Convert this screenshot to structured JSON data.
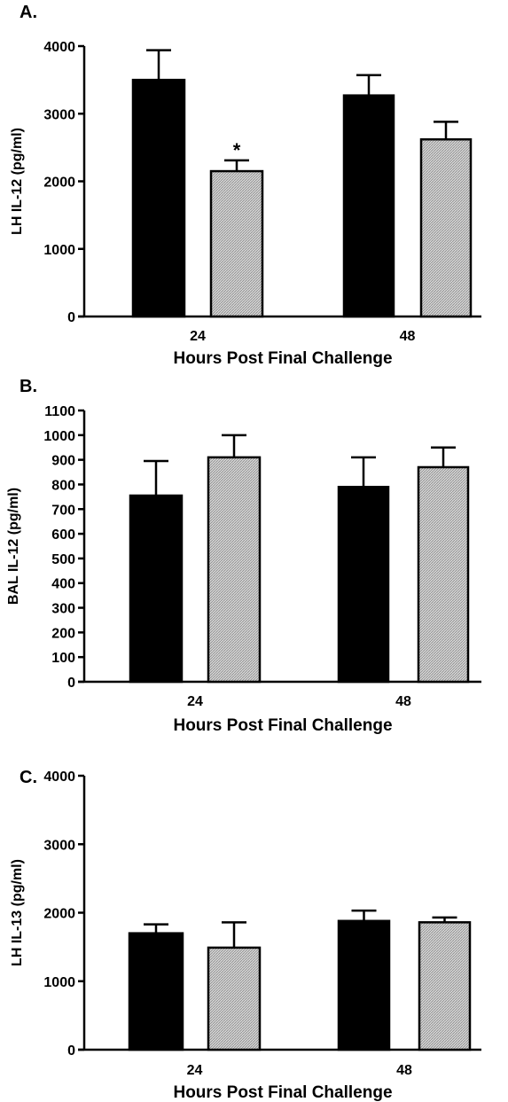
{
  "chart_data": [
    {
      "type": "bar",
      "panel": "A.",
      "ylabel": "LH IL-12 (pg/ml)",
      "xlabel": "Hours Post Final Challenge",
      "categories": [
        "24",
        "48"
      ],
      "ylim": [
        0,
        4000
      ],
      "yticks": [
        "0",
        "1000",
        "2000",
        "3000",
        "4000"
      ],
      "series": [
        {
          "fill": "#000000",
          "values": [
            3500,
            3270
          ],
          "errors": [
            440,
            300
          ]
        },
        {
          "fill": "hatch-gray",
          "values": [
            2150,
            2620
          ],
          "errors": [
            160,
            260
          ]
        }
      ],
      "annotations": [
        {
          "text": "*",
          "category": "24",
          "series": 1
        }
      ]
    },
    {
      "type": "bar",
      "panel": "B.",
      "ylabel": "BAL IL-12 (pg/ml)",
      "xlabel": "Hours Post Final Challenge",
      "categories": [
        "24",
        "48"
      ],
      "ylim": [
        0,
        1100
      ],
      "yticks": [
        "0",
        "100",
        "200",
        "300",
        "400",
        "500",
        "600",
        "700",
        "800",
        "900",
        "1000",
        "1100"
      ],
      "series": [
        {
          "fill": "#000000",
          "values": [
            755,
            790
          ],
          "errors": [
            140,
            120
          ]
        },
        {
          "fill": "hatch-gray",
          "values": [
            910,
            870
          ],
          "errors": [
            90,
            80
          ]
        }
      ],
      "annotations": []
    },
    {
      "type": "bar",
      "panel": "C.",
      "ylabel": "LH IL-13 (pg/ml)",
      "xlabel": "Hours Post Final Challenge",
      "categories": [
        "24",
        "48"
      ],
      "ylim": [
        0,
        4000
      ],
      "yticks": [
        "0",
        "1000",
        "2000",
        "3000",
        "4000"
      ],
      "series": [
        {
          "fill": "#000000",
          "values": [
            1700,
            1880
          ],
          "errors": [
            130,
            150
          ]
        },
        {
          "fill": "hatch-gray",
          "values": [
            1490,
            1860
          ],
          "errors": [
            370,
            70
          ]
        }
      ],
      "annotations": []
    }
  ]
}
